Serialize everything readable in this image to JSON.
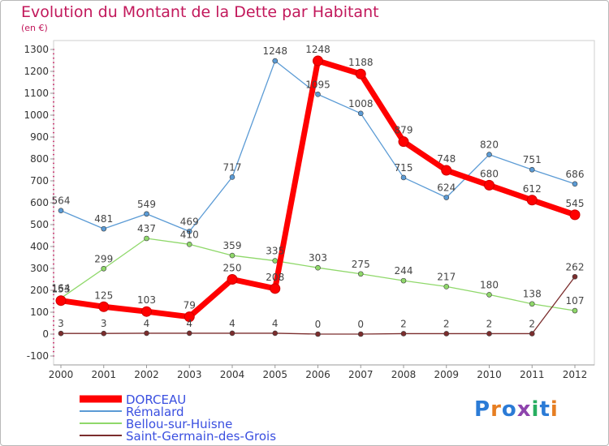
{
  "title": "Evolution du Montant de la Dette par Habitant",
  "subtitle": "(en €)",
  "logo": {
    "letters": [
      "P",
      "r",
      "o",
      "x",
      "i",
      "t",
      "i"
    ],
    "colors": [
      "#2b7bd6",
      "#e67e22",
      "#2b7bd6",
      "#8e44ad",
      "#27ae60",
      "#2b7bd6",
      "#e67e22"
    ]
  },
  "chart_data": {
    "type": "line",
    "x": [
      "2000",
      "2001",
      "2002",
      "2003",
      "2004",
      "2005",
      "2006",
      "2007",
      "2008",
      "2009",
      "2010",
      "2011",
      "2012"
    ],
    "ylim": [
      -100,
      1300
    ],
    "yticks": [
      "-100",
      "0",
      "100",
      "200",
      "300",
      "400",
      "500",
      "600",
      "700",
      "800",
      "900",
      "1000",
      "1100",
      "1200",
      "1300"
    ],
    "grid": false,
    "legend_position": "bottom-left",
    "series": [
      {
        "name": "DORCEAU",
        "color": "#ff0000",
        "width": 7,
        "values": [
          153,
          125,
          103,
          79,
          250,
          208,
          1248,
          1188,
          879,
          748,
          680,
          612,
          545
        ],
        "labels": [
          "153",
          "125",
          "103",
          "79",
          "250",
          "208",
          "1248",
          "1188",
          "879",
          "748",
          "680",
          "612",
          "545"
        ]
      },
      {
        "name": "Rémalard",
        "color": "#5b9bd5",
        "width": 1.3,
        "values": [
          564,
          481,
          549,
          469,
          717,
          1248,
          1095,
          1008,
          715,
          624,
          820,
          751,
          686
        ],
        "labels": [
          "564",
          "481",
          "549",
          "469",
          "717",
          "1248",
          "1095",
          "1008",
          "715",
          "624",
          "820",
          "751",
          "686"
        ]
      },
      {
        "name": "Bellou-sur-Huisne",
        "color": "#8fd86a",
        "width": 1.3,
        "values": [
          164,
          299,
          437,
          410,
          359,
          335,
          303,
          275,
          244,
          217,
          180,
          138,
          107
        ],
        "labels": [
          "164",
          "299",
          "437",
          "410",
          "359",
          "335",
          "303",
          "275",
          "244",
          "217",
          "180",
          "138",
          "107"
        ]
      },
      {
        "name": "Saint-Germain-des-Grois",
        "color": "#7b2d2d",
        "width": 1.3,
        "values": [
          3,
          3,
          4,
          4,
          4,
          4,
          0,
          0,
          2,
          2,
          2,
          2,
          262
        ],
        "labels": [
          "3",
          "3",
          "4",
          "4",
          "4",
          "4",
          "0",
          "0",
          "2",
          "2",
          "2",
          "2",
          "262"
        ]
      }
    ]
  }
}
